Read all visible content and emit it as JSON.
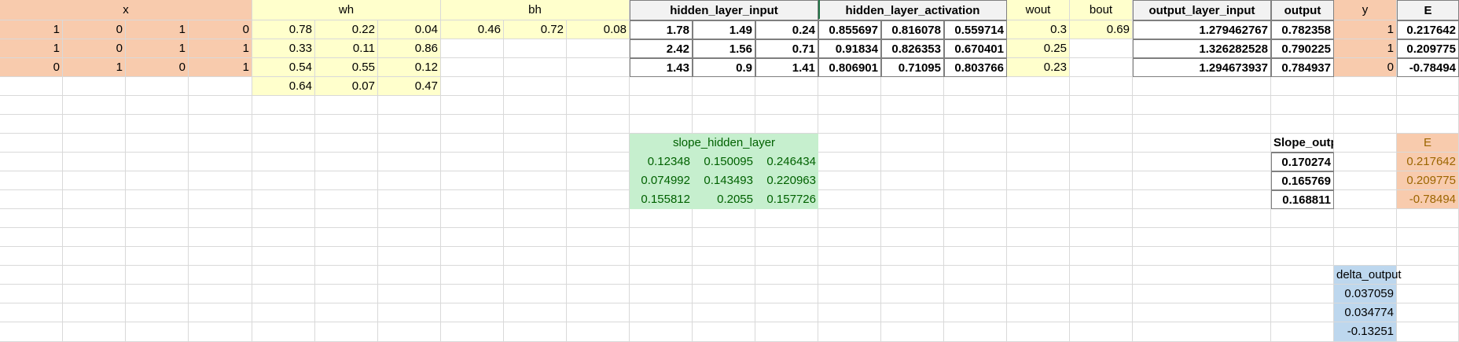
{
  "headers": {
    "x": "x",
    "wh": "wh",
    "bh": "bh",
    "hidden_layer_input": "hidden_layer_input",
    "hidden_layer_activation": "hidden_layer_activation",
    "wout": "wout",
    "bout": "bout",
    "output_layer_input": "output_layer_input",
    "output": "output",
    "y": "y",
    "E": "E"
  },
  "x": [
    [
      "1",
      "0",
      "1",
      "0"
    ],
    [
      "1",
      "0",
      "1",
      "1"
    ],
    [
      "0",
      "1",
      "0",
      "1"
    ]
  ],
  "wh": [
    [
      "0.78",
      "0.22",
      "0.04"
    ],
    [
      "0.33",
      "0.11",
      "0.86"
    ],
    [
      "0.54",
      "0.55",
      "0.12"
    ],
    [
      "0.64",
      "0.07",
      "0.47"
    ]
  ],
  "bh": [
    "0.46",
    "0.72",
    "0.08"
  ],
  "hidden_layer_input": [
    [
      "1.78",
      "1.49",
      "0.24"
    ],
    [
      "2.42",
      "1.56",
      "0.71"
    ],
    [
      "1.43",
      "0.9",
      "1.41"
    ]
  ],
  "hidden_layer_activation": [
    [
      "0.855697",
      "0.816078",
      "0.559714"
    ],
    [
      "0.91834",
      "0.826353",
      "0.670401"
    ],
    [
      "0.806901",
      "0.71095",
      "0.803766"
    ]
  ],
  "wout": [
    "0.3",
    "0.25",
    "0.23"
  ],
  "bout": "0.69",
  "output_layer_input": [
    "1.279462767",
    "1.326282528",
    "1.294673937"
  ],
  "output": [
    "0.782358",
    "0.790225",
    "0.784937"
  ],
  "y": [
    "1",
    "1",
    "0"
  ],
  "E": [
    "0.217642",
    "0.209775",
    "-0.78494"
  ],
  "slope_hidden_layer": {
    "label": "slope_hidden_layer",
    "rows": [
      [
        "0.12348",
        "0.150095",
        "0.246434"
      ],
      [
        "0.074992",
        "0.143493",
        "0.220963"
      ],
      [
        "0.155812",
        "0.2055",
        "0.157726"
      ]
    ]
  },
  "slope_output": {
    "label": "Slope_output",
    "values": [
      "0.170274",
      "0.165769",
      "0.168811"
    ]
  },
  "E2": {
    "label": "E",
    "values": [
      "0.217642",
      "0.209775",
      "-0.78494"
    ]
  },
  "delta_output": {
    "label": "delta_output",
    "values": [
      "0.037059",
      "0.034774",
      "-0.13251"
    ]
  }
}
